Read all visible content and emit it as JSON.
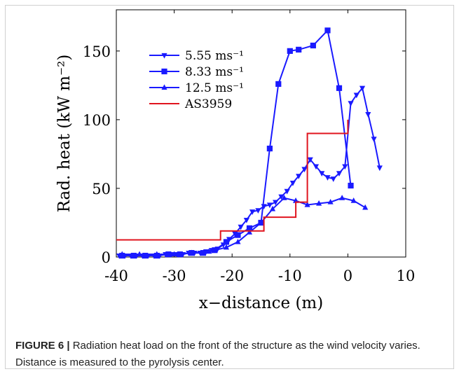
{
  "figure": {
    "label": "FIGURE 6 |",
    "caption": " Radiation heat load on the front of the structure as the wind velocity varies. Distance is measured to the pyrolysis center."
  },
  "colors": {
    "series": "#1a1aff",
    "reference": "#e0141e"
  },
  "chart_data": {
    "type": "line",
    "xlabel": "x−distance (m)",
    "ylabel": "Rad. heat (kW m⁻²)",
    "xlim": [
      -40,
      10
    ],
    "ylim": [
      0,
      180
    ],
    "xticks": [
      -40,
      -30,
      -20,
      -10,
      0,
      10
    ],
    "xtick_labels": [
      "-40",
      "-30",
      "-20",
      "-10",
      "0",
      "10"
    ],
    "yticks": [
      0,
      50,
      100,
      150
    ],
    "ytick_labels": [
      "0",
      "50",
      "100",
      "150"
    ],
    "grid": false,
    "legend_position": "top-left",
    "series": [
      {
        "name": "5.55 ms⁻¹",
        "marker": "triangle-down",
        "x": [
          -39.5,
          -38.5,
          -37.5,
          -36.5,
          -35.5,
          -34.5,
          -33.5,
          -32.5,
          -31.5,
          -30.5,
          -29.5,
          -28.5,
          -27.5,
          -26.5,
          -25.5,
          -24.5,
          -23.5,
          -22.5,
          -21.5,
          -20.5,
          -19.5,
          -18.5,
          -17.5,
          -16.5,
          -15.5,
          -14.5,
          -13.5,
          -12.5,
          -11.5,
          -10.5,
          -9.5,
          -8.5,
          -7.5,
          -6.5,
          -5.5,
          -4.5,
          -3.5,
          -2.5,
          -1.5,
          -0.5,
          0.5,
          1.5,
          2.5,
          3.5,
          4.5,
          5.5
        ],
        "y": [
          1,
          1,
          1,
          1,
          1,
          1,
          1,
          1,
          2,
          2,
          2,
          2,
          3,
          3,
          3,
          4,
          5,
          6,
          9,
          13,
          17,
          22,
          27,
          33,
          34,
          37,
          38,
          40,
          44,
          48,
          54,
          59,
          64,
          71,
          66,
          61,
          58,
          57,
          61,
          66,
          112,
          118,
          123,
          104,
          86,
          65
        ]
      },
      {
        "name": "8.33 ms⁻¹",
        "marker": "square",
        "x": [
          -39,
          -37,
          -35,
          -33,
          -31,
          -29,
          -27,
          -25,
          -23,
          -21,
          -19,
          -17,
          -15,
          -13.5,
          -12,
          -10,
          -8.5,
          -6,
          -3.5,
          -1.5,
          0.5
        ],
        "y": [
          1,
          1,
          1,
          1,
          2,
          2,
          3,
          3,
          5,
          11,
          16,
          21,
          25,
          79,
          126,
          150,
          151,
          154,
          165,
          123,
          52
        ]
      },
      {
        "name": "12.5 ms⁻¹",
        "marker": "triangle-up",
        "x": [
          -39,
          -36,
          -33,
          -30,
          -27,
          -24,
          -21,
          -19,
          -17,
          -15,
          -13,
          -11,
          -9,
          -7,
          -5,
          -3,
          -1,
          1,
          3
        ],
        "y": [
          2,
          2,
          2,
          2,
          3,
          4,
          7,
          11,
          18,
          25,
          35,
          43,
          41,
          38,
          39,
          40,
          43,
          41,
          36
        ]
      },
      {
        "name": "AS3959",
        "marker": "none",
        "x": [
          -40,
          -22,
          -22,
          -14.5,
          -14.5,
          -9,
          -9,
          -7,
          -7,
          0,
          0
        ],
        "y": [
          12.5,
          12.5,
          19,
          19,
          29,
          29,
          40,
          40,
          90,
          90,
          100
        ]
      }
    ]
  }
}
